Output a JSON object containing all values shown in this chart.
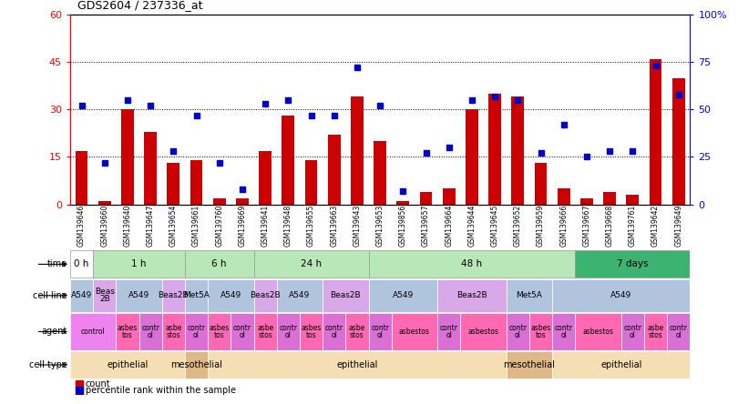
{
  "title": "GDS2604 / 237336_at",
  "samples": [
    "GSM139646",
    "GSM139660",
    "GSM139640",
    "GSM139647",
    "GSM139654",
    "GSM139661",
    "GSM139760",
    "GSM139669",
    "GSM139641",
    "GSM139648",
    "GSM139655",
    "GSM139663",
    "GSM139643",
    "GSM139653",
    "GSM139856",
    "GSM139657",
    "GSM139664",
    "GSM139644",
    "GSM139645",
    "GSM139652",
    "GSM139659",
    "GSM139666",
    "GSM139667",
    "GSM139668",
    "GSM139761",
    "GSM139642",
    "GSM139649"
  ],
  "bar_values": [
    17,
    1,
    30,
    23,
    13,
    14,
    2,
    2,
    17,
    28,
    14,
    22,
    34,
    20,
    1,
    4,
    5,
    30,
    35,
    34,
    13,
    5,
    2,
    4,
    3,
    46,
    40
  ],
  "dot_values": [
    52,
    22,
    55,
    52,
    28,
    47,
    22,
    8,
    53,
    55,
    47,
    47,
    72,
    52,
    7,
    27,
    30,
    55,
    57,
    55,
    27,
    42,
    25,
    28,
    28,
    73,
    58
  ],
  "ylim_left": [
    0,
    60
  ],
  "ylim_right": [
    0,
    100
  ],
  "yticks_left": [
    0,
    15,
    30,
    45,
    60
  ],
  "yticks_right": [
    0,
    25,
    50,
    75,
    100
  ],
  "bar_color": "#cc0000",
  "dot_color": "#0000cc",
  "background_color": "#ffffff",
  "dotted_lines": [
    15,
    30,
    45
  ],
  "time_segs": [
    {
      "label": "0 h",
      "span": [
        0,
        1
      ],
      "color": "#ffffff"
    },
    {
      "label": "1 h",
      "span": [
        1,
        5
      ],
      "color": "#b8e8b8"
    },
    {
      "label": "6 h",
      "span": [
        5,
        8
      ],
      "color": "#b8e8b8"
    },
    {
      "label": "24 h",
      "span": [
        8,
        13
      ],
      "color": "#b8e8b8"
    },
    {
      "label": "48 h",
      "span": [
        13,
        22
      ],
      "color": "#b8e8b8"
    },
    {
      "label": "7 days",
      "span": [
        22,
        27
      ],
      "color": "#3cb371"
    }
  ],
  "cell_line_segs": [
    {
      "label": "A549",
      "span": [
        0,
        1
      ],
      "color": "#b0c4de"
    },
    {
      "label": "Beas\n2B",
      "span": [
        1,
        2
      ],
      "color": "#d8a8e8"
    },
    {
      "label": "A549",
      "span": [
        2,
        4
      ],
      "color": "#b0c4de"
    },
    {
      "label": "Beas2B",
      "span": [
        4,
        5
      ],
      "color": "#d8a8e8"
    },
    {
      "label": "Met5A",
      "span": [
        5,
        6
      ],
      "color": "#b0c4de"
    },
    {
      "label": "A549",
      "span": [
        6,
        8
      ],
      "color": "#b0c4de"
    },
    {
      "label": "Beas2B",
      "span": [
        8,
        9
      ],
      "color": "#d8a8e8"
    },
    {
      "label": "A549",
      "span": [
        9,
        11
      ],
      "color": "#b0c4de"
    },
    {
      "label": "Beas2B",
      "span": [
        11,
        13
      ],
      "color": "#d8a8e8"
    },
    {
      "label": "A549",
      "span": [
        13,
        16
      ],
      "color": "#b0c4de"
    },
    {
      "label": "Beas2B",
      "span": [
        16,
        19
      ],
      "color": "#d8a8e8"
    },
    {
      "label": "Met5A",
      "span": [
        19,
        21
      ],
      "color": "#b0c4de"
    },
    {
      "label": "A549",
      "span": [
        21,
        27
      ],
      "color": "#b0c4de"
    }
  ],
  "agent_segs": [
    {
      "label": "control",
      "span": [
        0,
        2
      ],
      "color": "#ee82ee"
    },
    {
      "label": "asbes\ntos",
      "span": [
        2,
        3
      ],
      "color": "#ff69b4"
    },
    {
      "label": "contr\nol",
      "span": [
        3,
        4
      ],
      "color": "#da70d6"
    },
    {
      "label": "asbe\nstos",
      "span": [
        4,
        5
      ],
      "color": "#ff69b4"
    },
    {
      "label": "contr\nol",
      "span": [
        5,
        6
      ],
      "color": "#da70d6"
    },
    {
      "label": "asbes\ntos",
      "span": [
        6,
        7
      ],
      "color": "#ff69b4"
    },
    {
      "label": "contr\nol",
      "span": [
        7,
        8
      ],
      "color": "#da70d6"
    },
    {
      "label": "asbe\nstos",
      "span": [
        8,
        9
      ],
      "color": "#ff69b4"
    },
    {
      "label": "contr\nol",
      "span": [
        9,
        10
      ],
      "color": "#da70d6"
    },
    {
      "label": "asbes\ntos",
      "span": [
        10,
        11
      ],
      "color": "#ff69b4"
    },
    {
      "label": "contr\nol",
      "span": [
        11,
        12
      ],
      "color": "#da70d6"
    },
    {
      "label": "asbe\nstos",
      "span": [
        12,
        13
      ],
      "color": "#ff69b4"
    },
    {
      "label": "contr\nol",
      "span": [
        13,
        14
      ],
      "color": "#da70d6"
    },
    {
      "label": "asbestos",
      "span": [
        14,
        16
      ],
      "color": "#ff69b4"
    },
    {
      "label": "contr\nol",
      "span": [
        16,
        17
      ],
      "color": "#da70d6"
    },
    {
      "label": "asbestos",
      "span": [
        17,
        19
      ],
      "color": "#ff69b4"
    },
    {
      "label": "contr\nol",
      "span": [
        19,
        20
      ],
      "color": "#da70d6"
    },
    {
      "label": "asbes\ntos",
      "span": [
        20,
        21
      ],
      "color": "#ff69b4"
    },
    {
      "label": "contr\nol",
      "span": [
        21,
        22
      ],
      "color": "#da70d6"
    },
    {
      "label": "asbestos",
      "span": [
        22,
        24
      ],
      "color": "#ff69b4"
    },
    {
      "label": "contr\nol",
      "span": [
        24,
        25
      ],
      "color": "#da70d6"
    },
    {
      "label": "asbe\nstos",
      "span": [
        25,
        26
      ],
      "color": "#ff69b4"
    },
    {
      "label": "contr\nol",
      "span": [
        26,
        27
      ],
      "color": "#da70d6"
    }
  ],
  "cell_type_segs": [
    {
      "label": "epithelial",
      "span": [
        0,
        5
      ],
      "color": "#f5deb3"
    },
    {
      "label": "mesothelial",
      "span": [
        5,
        6
      ],
      "color": "#deb887"
    },
    {
      "label": "epithelial",
      "span": [
        6,
        19
      ],
      "color": "#f5deb3"
    },
    {
      "label": "mesothelial",
      "span": [
        19,
        21
      ],
      "color": "#deb887"
    },
    {
      "label": "epithelial",
      "span": [
        21,
        27
      ],
      "color": "#f5deb3"
    }
  ],
  "row_label_names": [
    "time",
    "cell line",
    "agent",
    "cell type"
  ]
}
